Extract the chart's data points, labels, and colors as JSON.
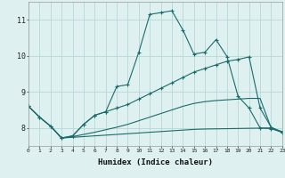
{
  "bg_color": "#dff0f0",
  "grid_color": "#b8d8d8",
  "line_color": "#1a6b6b",
  "x_min": 0,
  "x_max": 23,
  "y_min": 7.5,
  "y_max": 11.5,
  "xlabel": "Humidex (Indice chaleur)",
  "yticks": [
    8,
    9,
    10,
    11
  ],
  "xticks": [
    0,
    1,
    2,
    3,
    4,
    5,
    6,
    7,
    8,
    9,
    10,
    11,
    12,
    13,
    14,
    15,
    16,
    17,
    18,
    19,
    20,
    21,
    22,
    23
  ],
  "line1_x": [
    0,
    1,
    2,
    3,
    4,
    5,
    6,
    7,
    8,
    9,
    10,
    11,
    12,
    13,
    14,
    15,
    16,
    17,
    18,
    19,
    20,
    21,
    22,
    23
  ],
  "line1_y": [
    8.6,
    8.3,
    8.05,
    7.72,
    7.78,
    8.1,
    8.35,
    8.45,
    9.15,
    9.2,
    10.1,
    11.15,
    11.2,
    11.25,
    10.72,
    10.05,
    10.1,
    10.45,
    9.98,
    8.88,
    8.55,
    8.0,
    7.98,
    7.88
  ],
  "line2_x": [
    0,
    1,
    2,
    3,
    4,
    5,
    6,
    7,
    8,
    9,
    10,
    11,
    12,
    13,
    14,
    15,
    16,
    17,
    18,
    19,
    20,
    21,
    22,
    23
  ],
  "line2_y": [
    8.6,
    8.3,
    8.05,
    7.72,
    7.78,
    8.1,
    8.35,
    8.45,
    8.55,
    8.65,
    8.8,
    8.95,
    9.1,
    9.25,
    9.4,
    9.55,
    9.65,
    9.75,
    9.85,
    9.9,
    9.97,
    8.55,
    8.02,
    7.88
  ],
  "line3_x": [
    0,
    1,
    2,
    3,
    4,
    5,
    6,
    7,
    8,
    9,
    10,
    11,
    12,
    13,
    14,
    15,
    16,
    17,
    18,
    19,
    20,
    21,
    22,
    23
  ],
  "line3_y": [
    8.6,
    8.3,
    8.05,
    7.72,
    7.74,
    7.76,
    7.78,
    7.8,
    7.82,
    7.84,
    7.86,
    7.88,
    7.9,
    7.92,
    7.94,
    7.96,
    7.97,
    7.975,
    7.98,
    7.985,
    7.99,
    7.995,
    8.0,
    7.9
  ],
  "line4_x": [
    2,
    3,
    4,
    5,
    6,
    7,
    8,
    9,
    10,
    11,
    12,
    13,
    14,
    15,
    16,
    17,
    18,
    19,
    20,
    21,
    22,
    23
  ],
  "line4_y": [
    8.05,
    7.72,
    7.76,
    7.82,
    7.88,
    7.95,
    8.02,
    8.1,
    8.2,
    8.3,
    8.4,
    8.5,
    8.6,
    8.68,
    8.73,
    8.76,
    8.78,
    8.8,
    8.82,
    8.82,
    8.0,
    7.88
  ]
}
